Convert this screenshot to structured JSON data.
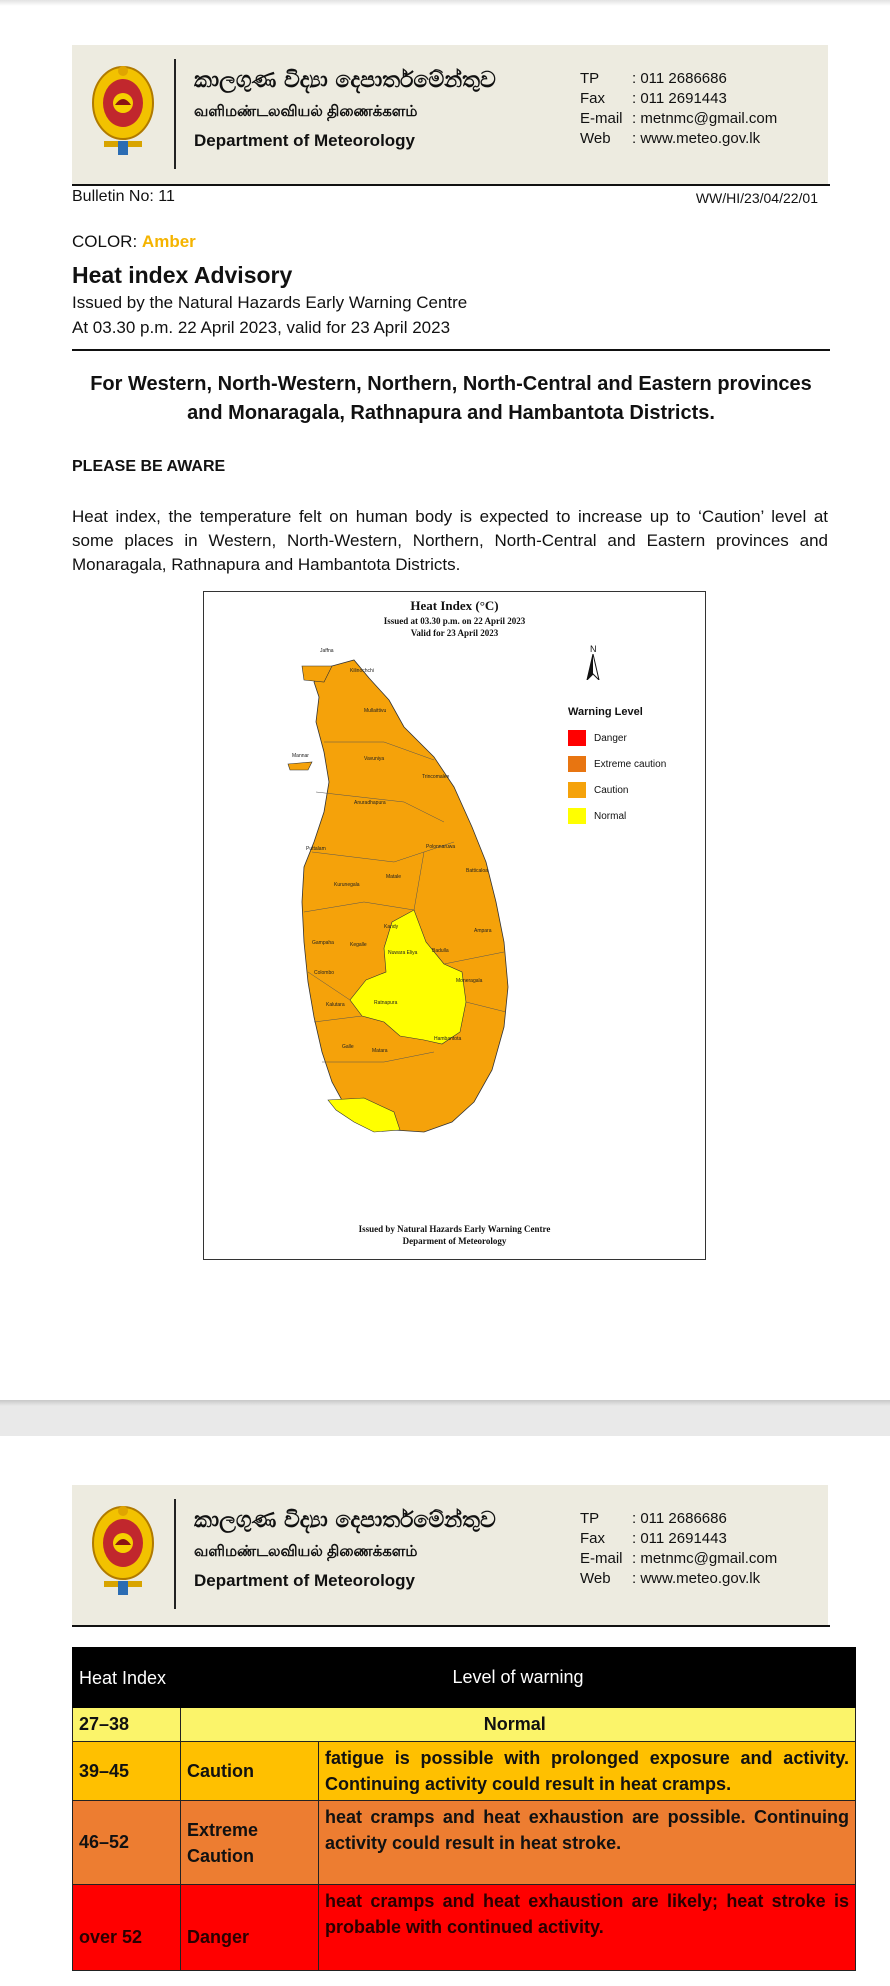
{
  "header": {
    "sinhala_name": "කාලගුණ විද්‍යා දෙපාර්තමේන්තුව",
    "tamil_name": "வளிமண்டலவியல் திணைக்களம்",
    "english_name": "Department of Meteorology",
    "contacts": [
      {
        "label": "TP",
        "value": ": 011 2686686"
      },
      {
        "label": "Fax",
        "value": ": 011 2691443"
      },
      {
        "label": "E-mail",
        "value": ": metnmc@gmail.com"
      },
      {
        "label": "Web",
        "value": ": www.meteo.gov.lk"
      }
    ]
  },
  "bulletin": {
    "number": "Bulletin No: 11",
    "reference": "WW/HI/23/04/22/01",
    "color_label": "COLOR:",
    "color_value": "Amber",
    "title": "Heat index Advisory",
    "issued_by": "Issued by the Natural Hazards Early Warning Centre",
    "issued_at": "At 03.30 p.m. 22 April 2023, valid for 23 April 2023",
    "regions": "For Western, North-Western, Northern, North-Central and Eastern provinces and Monaragala, Rathnapura and Hambantota Districts.",
    "aware_heading": "PLEASE BE AWARE",
    "body": "Heat index, the temperature felt on human body is expected to increase up to ‘Caution’ level at some places in Western, North-Western, Northern, North-Central and Eastern provinces and Monaragala, Rathnapura and Hambantota Districts."
  },
  "map": {
    "title": "Heat Index (°C)",
    "issued": "Issued at 03.30 p.m. on 22 April 2023",
    "valid": "Valid for  23 April 2023",
    "north": "N",
    "legend_title": "Warning Level",
    "legend": [
      {
        "label": "Danger",
        "color": "#ff0000"
      },
      {
        "label": "Extreme caution",
        "color": "#e87511"
      },
      {
        "label": "Caution",
        "color": "#f5a20a"
      },
      {
        "label": "Normal",
        "color": "#ffff00"
      }
    ],
    "footer_1": "Issued by Natural Hazards Early Warning Centre",
    "footer_2": "Deparment of Meteorology",
    "districts": [
      "Jaffna",
      "Kilinochchi",
      "Mullaittivu",
      "Mannar",
      "Vavuniya",
      "Trincomalee",
      "Anuradhapura",
      "Puttalam",
      "Polonnaruwa",
      "Batticaloa",
      "Matale",
      "Kurunegala",
      "Kandy",
      "Ampara",
      "Gampaha",
      "Kegalle",
      "Nuwara Eliya",
      "Badulla",
      "Colombo",
      "Moneragala",
      "Kalutara",
      "Ratnapura",
      "Hambantota",
      "Galle",
      "Matara"
    ]
  },
  "table": {
    "header_col1": "Heat Index",
    "header_col2": "Level of warning",
    "rows": [
      {
        "range": "27–38",
        "level": "Normal",
        "desc": ""
      },
      {
        "range": "39–45",
        "level": "Caution",
        "desc": "fatigue is possible with prolonged exposure and activity. Continuing activity could result in heat cramps."
      },
      {
        "range": "46–52",
        "level": "Extreme Caution",
        "desc": "heat cramps and heat exhaustion are possible. Continuing activity could result in heat stroke."
      },
      {
        "range": "over 52",
        "level": "Danger",
        "desc": "heat cramps and heat exhaustion are likely; heat stroke is probable with continued activity."
      }
    ],
    "colors": {
      "header": "#000000",
      "normal": "#fbf46a",
      "caution": "#ffc000",
      "extreme": "#ed7d31",
      "danger": "#ff0000"
    }
  }
}
